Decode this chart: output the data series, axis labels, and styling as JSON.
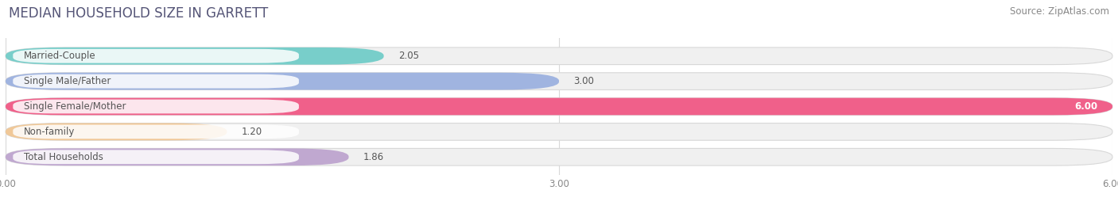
{
  "title": "MEDIAN HOUSEHOLD SIZE IN GARRETT",
  "source": "Source: ZipAtlas.com",
  "categories": [
    "Married-Couple",
    "Single Male/Father",
    "Single Female/Mother",
    "Non-family",
    "Total Households"
  ],
  "values": [
    2.05,
    3.0,
    6.0,
    1.2,
    1.86
  ],
  "bar_colors": [
    "#78ceca",
    "#a0b4e0",
    "#f0608a",
    "#f0c898",
    "#c0a8d0"
  ],
  "xlim": [
    0,
    6.0
  ],
  "xticks": [
    0.0,
    3.0,
    6.0
  ],
  "xtick_labels": [
    "0.00",
    "3.00",
    "6.00"
  ],
  "background_color": "#ffffff",
  "bar_bg_color": "#f0f0f0",
  "title_fontsize": 12,
  "label_fontsize": 8.5,
  "value_fontsize": 8.5,
  "source_fontsize": 8.5
}
